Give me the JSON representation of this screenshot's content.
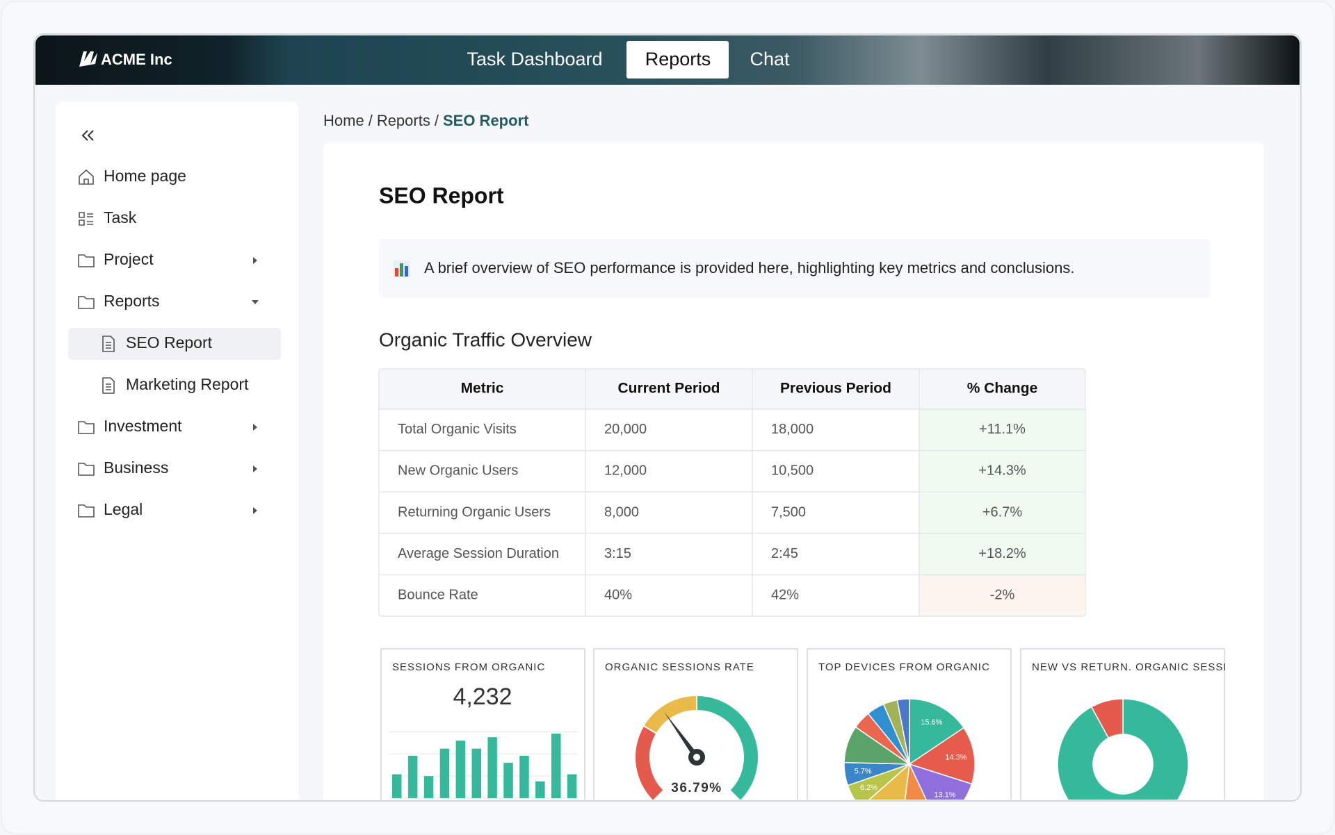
{
  "header": {
    "logo": "ACME Inc",
    "nav": [
      "Task Dashboard",
      "Reports",
      "Chat"
    ],
    "active_index": 1
  },
  "sidebar": {
    "items": [
      {
        "label": "Home page",
        "icon": "home"
      },
      {
        "label": "Task",
        "icon": "task"
      },
      {
        "label": "Project",
        "icon": "folder",
        "expanded": false
      },
      {
        "label": "Reports",
        "icon": "folder",
        "expanded": true,
        "children": [
          {
            "label": "SEO Report",
            "active": true
          },
          {
            "label": "Marketing Report"
          }
        ]
      },
      {
        "label": "Investment",
        "icon": "folder",
        "expanded": false
      },
      {
        "label": "Business",
        "icon": "folder",
        "expanded": false
      },
      {
        "label": "Legal",
        "icon": "folder",
        "expanded": false
      }
    ]
  },
  "breadcrumb": {
    "items": [
      "Home",
      "Reports",
      "SEO Report"
    ],
    "separator": "/"
  },
  "page": {
    "title": "SEO Report",
    "intro": "A brief overview of SEO performance is provided here, highlighting key metrics and conclusions.",
    "section_title": "Organic Traffic Overview"
  },
  "table": {
    "columns": [
      "Metric",
      "Current Period",
      "Previous Period",
      "% Change"
    ],
    "rows": [
      [
        "Total Organic Visits",
        "20,000",
        "18,000",
        "+11.1%"
      ],
      [
        "New Organic Users",
        "12,000",
        "10,500",
        "+14.3%"
      ],
      [
        "Returning Organic Users",
        "8,000",
        "7,500",
        "+6.7%"
      ],
      [
        "Average Session Duration",
        "3:15",
        "2:45",
        "+18.2%"
      ],
      [
        "Bounce Rate",
        "40%",
        "42%",
        "-2%"
      ]
    ],
    "change_colors": [
      "#effaf1",
      "#effaf1",
      "#effaf1",
      "#effaf1",
      "#fdf4ee"
    ]
  },
  "chart_data": [
    {
      "type": "bar",
      "title": "SESSIONS FROM ORGANIC",
      "total": "4,232",
      "values": [
        27,
        48,
        25,
        56,
        65,
        56,
        69,
        40,
        48,
        19,
        73,
        27
      ],
      "color": "#36b99a",
      "ylim": [
        0,
        100
      ],
      "yticks": [
        0,
        25,
        50,
        75
      ],
      "grid": true
    },
    {
      "type": "gauge",
      "title": "ORGANIC SESSIONS RATE",
      "value": 36.79,
      "value_label": "36.79%",
      "range": [
        0,
        100
      ],
      "bands": [
        {
          "to": 28,
          "color": "#e45a4d"
        },
        {
          "to": 50,
          "color": "#e9b949"
        },
        {
          "to": 100,
          "color": "#36b99a"
        }
      ]
    },
    {
      "type": "pie",
      "title": "TOP DEVICES FROM ORGANIC",
      "values": [
        15.6,
        14.3,
        13.1,
        9.0,
        11.5,
        6.2,
        5.7,
        9.2,
        4.5,
        4.4,
        3.5,
        3.0
      ],
      "value_labels": [
        "15.6%",
        "14.3%",
        "13.1%",
        null,
        null,
        "6.2%",
        "5.7%",
        null,
        null,
        null,
        null,
        null
      ],
      "colors": [
        "#36b99a",
        "#e55b4c",
        "#8e6fdc",
        "#f08b4a",
        "#e8bb48",
        "#b7c64b",
        "#3a86c8",
        "#5aa469",
        "#e9674f",
        "#2f8fd0",
        "#a3b257",
        "#4a78c9"
      ]
    },
    {
      "type": "donut",
      "title": "NEW VS RETURN. ORGANIC SESSIONS",
      "values": [
        92,
        8
      ],
      "colors": [
        "#36b99a",
        "#e45a4d"
      ]
    }
  ]
}
